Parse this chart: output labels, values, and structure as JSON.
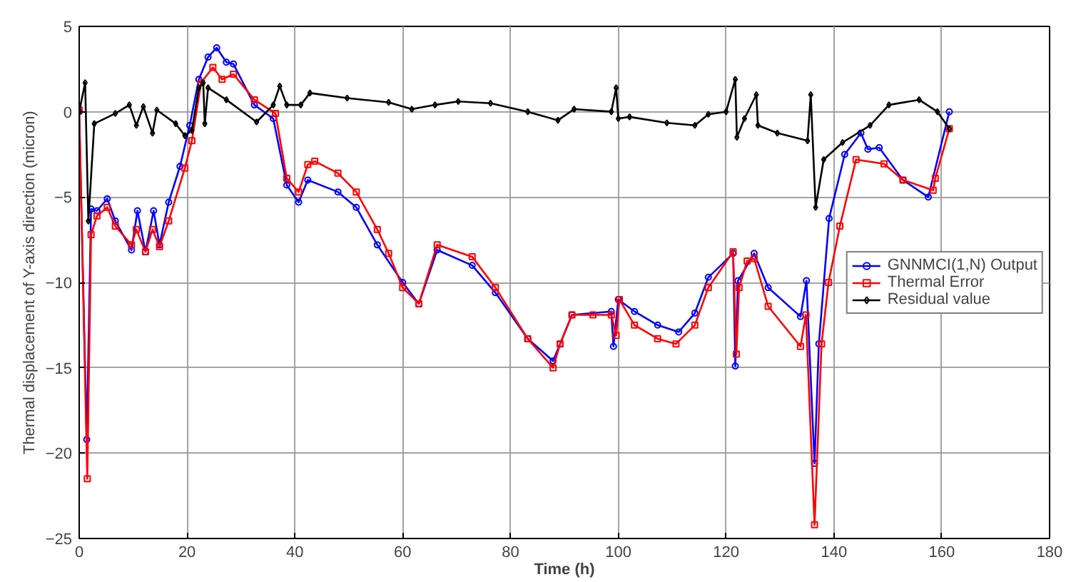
{
  "chart_data": {
    "type": "line",
    "xlabel": "Time (h)",
    "ylabel": "Thermal displacement of Y-axis direction (micron)",
    "xlim": [
      0,
      180
    ],
    "xticks": [
      0,
      20,
      40,
      60,
      80,
      100,
      120,
      140,
      160,
      180
    ],
    "ylim": [
      -25,
      5
    ],
    "yticks": [
      -25,
      -20,
      -15,
      -10,
      -5,
      0,
      5
    ],
    "grid": true,
    "legend": "right",
    "line_style": "solid",
    "series": [
      {
        "name": "GNNMCI(1,N) Output",
        "color": "#0000ff",
        "marker": "circle",
        "x": [
          0,
          1.4,
          2.2,
          3.3,
          5.2,
          6.7,
          9.7,
          10.8,
          12.3,
          13.8,
          14.9,
          16.6,
          18.7,
          20.5,
          22.2,
          23.9,
          25.5,
          27.3,
          28.6,
          32.5,
          36,
          38.5,
          40.7,
          42.4,
          48,
          51.4,
          55.3,
          60,
          63,
          66.4,
          72.9,
          77.2,
          83.2,
          87.9,
          89.2,
          91.4,
          98.7,
          99.1,
          100,
          103,
          107.3,
          111.2,
          114.2,
          116.7,
          121.3,
          121.7,
          122.2,
          125.2,
          127.8,
          133.8,
          134.9,
          136.4,
          137.2,
          139.1,
          142,
          145,
          146.3,
          148.4,
          152.8,
          157.5,
          161.4
        ],
        "values": [
          0,
          -19.2,
          -5.7,
          -5.8,
          -5.1,
          -6.4,
          -8.1,
          -5.8,
          -8.2,
          -5.8,
          -7.8,
          -5.3,
          -3.2,
          -0.8,
          1.9,
          3.2,
          3.75,
          2.9,
          2.8,
          0.4,
          -0.4,
          -4.3,
          -5.3,
          -4.0,
          -4.7,
          -5.6,
          -7.8,
          -10.0,
          -11.25,
          -8.1,
          -9.0,
          -10.6,
          -13.3,
          -14.6,
          -13.6,
          -11.9,
          -11.7,
          -13.75,
          -11.0,
          -11.7,
          -12.5,
          -12.9,
          -11.8,
          -9.7,
          -8.3,
          -14.9,
          -9.9,
          -8.3,
          -10.3,
          -12.0,
          -9.9,
          -20.6,
          -13.6,
          -6.25,
          -2.5,
          -1.25,
          -2.2,
          -2.1,
          -4.0,
          -5.0,
          0
        ]
      },
      {
        "name": "Thermal Error",
        "color": "#ff0000",
        "marker": "square",
        "x": [
          0,
          1.5,
          2.2,
          3.3,
          5.2,
          6.7,
          9.7,
          10.6,
          12.3,
          13.6,
          14.9,
          16.6,
          19.6,
          20.9,
          22.6,
          24.8,
          26.5,
          28.6,
          32.5,
          36.4,
          38.5,
          40.7,
          42.4,
          43.7,
          48,
          51.4,
          55.3,
          57.4,
          60,
          63,
          66.4,
          72.9,
          77.2,
          83.2,
          87.9,
          89.2,
          91.4,
          95.3,
          98.7,
          99.6,
          100.2,
          103,
          107.3,
          110.7,
          114.2,
          116.7,
          121.3,
          121.9,
          122.4,
          123.9,
          125.2,
          127.8,
          133.8,
          134.8,
          136.4,
          137.7,
          139,
          141.1,
          144.1,
          149.3,
          152.8,
          158.4,
          158.8,
          161.4
        ],
        "values": [
          0.1,
          -21.5,
          -7.2,
          -6.1,
          -5.6,
          -6.7,
          -7.8,
          -6.9,
          -8.2,
          -6.9,
          -7.9,
          -6.4,
          -3.3,
          -1.7,
          1.7,
          2.6,
          1.9,
          2.2,
          0.7,
          -0.1,
          -3.9,
          -4.7,
          -3.1,
          -2.9,
          -3.6,
          -4.7,
          -6.9,
          -8.3,
          -10.3,
          -11.25,
          -7.8,
          -8.5,
          -10.3,
          -13.3,
          -15.0,
          -13.6,
          -11.9,
          -11.9,
          -11.9,
          -13.1,
          -11.0,
          -12.5,
          -13.3,
          -13.6,
          -12.5,
          -10.3,
          -8.2,
          -14.2,
          -10.3,
          -8.75,
          -8.6,
          -11.4,
          -13.75,
          -11.9,
          -24.2,
          -13.6,
          -10.0,
          -6.7,
          -2.8,
          -3.05,
          -4.0,
          -4.6,
          -3.9,
          -1.0
        ]
      },
      {
        "name": "Residual value",
        "color": "#000000",
        "marker": "diamond",
        "x": [
          0,
          1.1,
          1.7,
          2.8,
          6.7,
          9.3,
          10.6,
          11.9,
          13.6,
          14.4,
          17.9,
          19.6,
          20.9,
          22.2,
          23,
          23.3,
          23.9,
          27.3,
          32.9,
          36,
          37.2,
          38.5,
          41.1,
          42.8,
          49.7,
          57.4,
          61.7,
          66,
          70.3,
          76.3,
          83.2,
          88.8,
          91.8,
          98.7,
          99.6,
          100,
          102.1,
          109,
          114.2,
          116.7,
          120,
          121.7,
          122,
          123.4,
          125.6,
          125.9,
          129.5,
          135.1,
          135.7,
          136.6,
          138.1,
          141.6,
          146.7,
          150.2,
          155.8,
          159.2,
          161.4
        ],
        "values": [
          0,
          1.7,
          -6.4,
          -0.7,
          -0.1,
          0.4,
          -0.8,
          0.3,
          -1.25,
          0.1,
          -0.7,
          -1.4,
          -1.1,
          1.4,
          1.7,
          -0.7,
          1.4,
          0.7,
          -0.6,
          0.4,
          1.5,
          0.4,
          0.4,
          1.1,
          0.8,
          0.55,
          0.15,
          0.4,
          0.6,
          0.5,
          0,
          -0.5,
          0.15,
          0,
          1.4,
          -0.4,
          -0.3,
          -0.65,
          -0.8,
          -0.15,
          0,
          1.9,
          -1.5,
          -0.4,
          1.0,
          -0.8,
          -1.25,
          -1.7,
          1.0,
          -5.6,
          -2.8,
          -1.8,
          -0.8,
          0.4,
          0.7,
          0,
          -1.0
        ]
      }
    ]
  }
}
